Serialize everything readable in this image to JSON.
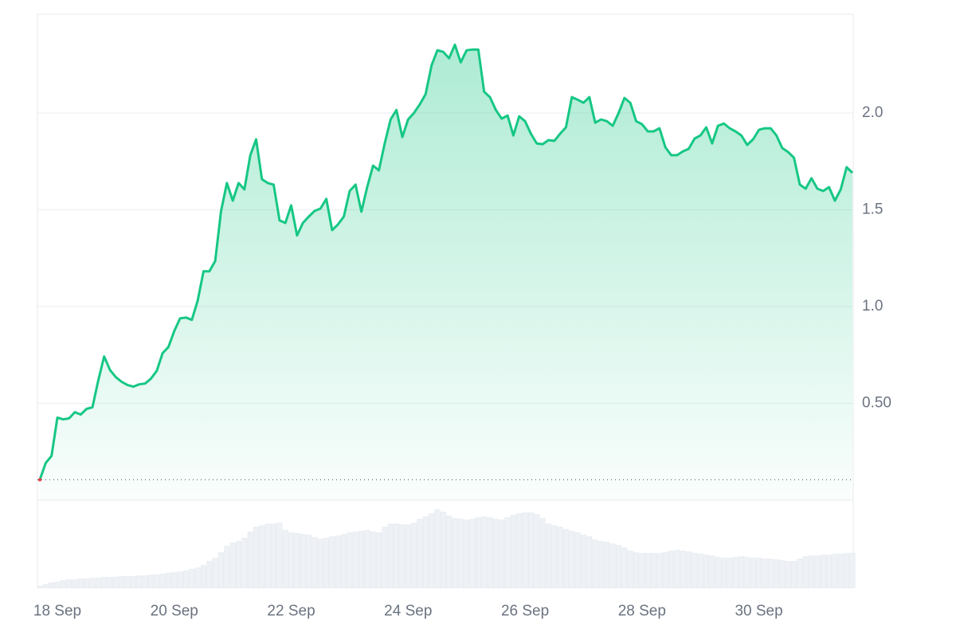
{
  "chart_data": {
    "type": "line",
    "x": [
      17.7,
      17.8,
      17.9,
      18,
      18.1,
      18.2,
      18.3,
      18.4,
      18.5,
      18.6,
      18.7,
      18.8,
      18.9,
      19,
      19.1,
      19.2,
      19.3,
      19.4,
      19.5,
      19.6,
      19.7,
      19.8,
      19.9,
      20,
      20.1,
      20.2,
      20.3,
      20.4,
      20.5,
      20.6,
      20.7,
      20.8,
      20.9,
      21,
      21.1,
      21.2,
      21.3,
      21.4,
      21.5,
      21.6,
      21.7,
      21.8,
      21.9,
      22,
      22.1,
      22.2,
      22.3,
      22.4,
      22.5,
      22.6,
      22.7,
      22.8,
      22.9,
      23,
      23.1,
      23.2,
      23.3,
      23.4,
      23.5,
      23.6,
      23.7,
      23.8,
      23.9,
      24,
      24.1,
      24.2,
      24.3,
      24.4,
      24.5,
      24.6,
      24.7,
      24.8,
      24.9,
      25,
      25.1,
      25.2,
      25.3,
      25.4,
      25.5,
      25.6,
      25.7,
      25.8,
      25.9,
      26,
      26.1,
      26.2,
      26.3,
      26.4,
      26.5,
      26.6,
      26.7,
      26.8,
      26.9,
      27,
      27.1,
      27.2,
      27.3,
      27.4,
      27.5,
      27.6,
      27.7,
      27.8,
      27.9,
      28,
      28.1,
      28.2,
      28.3,
      28.4,
      28.5,
      28.6,
      28.7,
      28.8,
      28.9,
      29,
      29.1,
      29.2,
      29.3,
      29.4,
      29.5,
      29.6,
      29.7,
      29.8,
      29.9,
      30,
      30.1,
      30.2,
      30.3,
      30.4,
      30.5,
      30.6,
      30.7,
      30.8,
      30.9,
      31,
      31.1,
      31.2,
      31.3,
      31.4,
      31.5,
      31.6
    ],
    "values": [
      0.105,
      0.191,
      0.228,
      0.426,
      0.417,
      0.422,
      0.454,
      0.442,
      0.471,
      0.479,
      0.619,
      0.742,
      0.672,
      0.635,
      0.611,
      0.594,
      0.586,
      0.598,
      0.602,
      0.627,
      0.668,
      0.759,
      0.791,
      0.874,
      0.939,
      0.943,
      0.931,
      1.03,
      1.182,
      1.182,
      1.235,
      1.494,
      1.638,
      1.547,
      1.638,
      1.605,
      1.782,
      1.864,
      1.658,
      1.638,
      1.63,
      1.445,
      1.432,
      1.523,
      1.367,
      1.432,
      1.465,
      1.494,
      1.506,
      1.556,
      1.395,
      1.424,
      1.465,
      1.597,
      1.63,
      1.49,
      1.617,
      1.728,
      1.704,
      1.843,
      1.967,
      2.016,
      1.876,
      1.967,
      2.0,
      2.045,
      2.098,
      2.246,
      2.324,
      2.316,
      2.283,
      2.353,
      2.262,
      2.324,
      2.328,
      2.328,
      2.11,
      2.082,
      2.016,
      1.971,
      1.987,
      1.884,
      1.983,
      1.958,
      1.893,
      1.843,
      1.839,
      1.86,
      1.856,
      1.893,
      1.926,
      2.082,
      2.069,
      2.053,
      2.082,
      1.95,
      1.967,
      1.958,
      1.934,
      2.0,
      2.078,
      2.053,
      1.958,
      1.942,
      1.905,
      1.905,
      1.921,
      1.823,
      1.782,
      1.782,
      1.802,
      1.815,
      1.868,
      1.884,
      1.926,
      1.843,
      1.934,
      1.946,
      1.921,
      1.905,
      1.884,
      1.835,
      1.864,
      1.913,
      1.921,
      1.921,
      1.884,
      1.819,
      1.798,
      1.769,
      1.63,
      1.609,
      1.663,
      1.609,
      1.597,
      1.617,
      1.547,
      1.605,
      1.72,
      1.691
    ],
    "color": "#16c784",
    "volume": {
      "color": "#eef1f5",
      "values": [
        2,
        4,
        6,
        7,
        9,
        10,
        10,
        11,
        11,
        12,
        12,
        13,
        13,
        13,
        14,
        14,
        14,
        15,
        15,
        16,
        16,
        17,
        18,
        19,
        20,
        21,
        23,
        25,
        28,
        33,
        37,
        44,
        52,
        56,
        58,
        62,
        70,
        76,
        78,
        80,
        80,
        81,
        72,
        69,
        68,
        67,
        66,
        63,
        61,
        62,
        64,
        65,
        67,
        69,
        70,
        71,
        72,
        70,
        69,
        76,
        80,
        80,
        79,
        79,
        81,
        86,
        89,
        93,
        98,
        95,
        90,
        87,
        86,
        85,
        86,
        88,
        89,
        88,
        86,
        85,
        88,
        91,
        93,
        94,
        94,
        92,
        87,
        80,
        78,
        76,
        73,
        71,
        69,
        66,
        64,
        60,
        58,
        57,
        55,
        53,
        50,
        46,
        44,
        43,
        43,
        43,
        43,
        44,
        46,
        47,
        46,
        45,
        43,
        42,
        41,
        40,
        38,
        37,
        37,
        38,
        39,
        38,
        37,
        37,
        36,
        36,
        35,
        34,
        33,
        33,
        36,
        39,
        40,
        40,
        41,
        41,
        42,
        42,
        43,
        43
      ]
    },
    "volume_lim": [
      0,
      100
    ],
    "xlim": [
      17.7,
      31.6
    ],
    "xticks": [
      {
        "value": 18,
        "label": "18 Sep"
      },
      {
        "value": 20,
        "label": "20 Sep"
      },
      {
        "value": 22,
        "label": "22 Sep"
      },
      {
        "value": 24,
        "label": "24 Sep"
      },
      {
        "value": 26,
        "label": "26 Sep"
      },
      {
        "value": 28,
        "label": "28 Sep"
      },
      {
        "value": 30,
        "label": "30 Sep"
      }
    ],
    "ylim": [
      0,
      2.51
    ],
    "yticks": [
      {
        "value": 0.5,
        "label": "0.50"
      },
      {
        "value": 1,
        "label": "1.0"
      },
      {
        "value": 1.5,
        "label": "1.5"
      },
      {
        "value": 2,
        "label": "2.0"
      }
    ],
    "grid": true
  }
}
